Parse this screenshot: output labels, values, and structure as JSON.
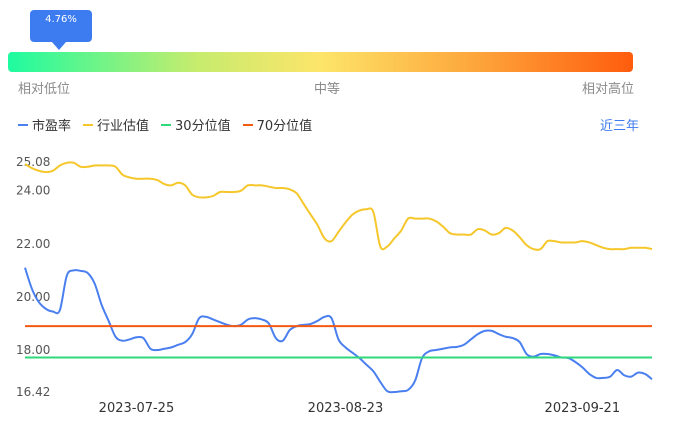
{
  "gauge": {
    "percentile_label": "4.76%",
    "percentile": 4.76,
    "low_label": "相对低位",
    "mid_label": "中等",
    "high_label": "相对高位"
  },
  "period_selector": "近三年",
  "colors": {
    "pe": "#4a7ff0",
    "industry": "#f6c72b",
    "p30": "#2ed97a",
    "p70": "#f45a12",
    "accent": "#3d7cf0"
  },
  "chart_data": {
    "type": "line",
    "ylim": [
      16.42,
      25.08
    ],
    "y_ticks": [
      "25.08",
      "24.00",
      "22.00",
      "20.00",
      "18.00",
      "16.42"
    ],
    "y_tick_values": [
      25.08,
      24.0,
      22.0,
      20.0,
      18.0,
      16.42
    ],
    "x_ticks": [
      "2023-07-25",
      "2023-08-23",
      "2023-09-21"
    ],
    "x_tick_index": [
      16,
      46,
      80
    ],
    "n_points": 91,
    "series": [
      {
        "name": "市盈率",
        "values": [
          21.1,
          20.3,
          19.8,
          19.55,
          19.45,
          19.5,
          20.8,
          21.0,
          20.98,
          20.9,
          20.5,
          19.7,
          19.1,
          18.5,
          18.35,
          18.4,
          18.48,
          18.45,
          18.05,
          18.0,
          18.05,
          18.1,
          18.2,
          18.3,
          18.6,
          19.2,
          19.25,
          19.15,
          19.05,
          18.95,
          18.9,
          18.95,
          19.15,
          19.2,
          19.15,
          19.0,
          18.45,
          18.35,
          18.75,
          18.9,
          18.95,
          18.98,
          19.1,
          19.25,
          19.2,
          18.4,
          18.1,
          17.9,
          17.7,
          17.45,
          17.2,
          16.8,
          16.45,
          16.42,
          16.45,
          16.5,
          16.85,
          17.7,
          17.95,
          18.0,
          18.05,
          18.1,
          18.12,
          18.2,
          18.4,
          18.6,
          18.72,
          18.72,
          18.6,
          18.5,
          18.45,
          18.3,
          17.85,
          17.75,
          17.85,
          17.85,
          17.8,
          17.72,
          17.7,
          17.55,
          17.35,
          17.1,
          16.95,
          16.95,
          17.0,
          17.25,
          17.05,
          17.0,
          17.15,
          17.1,
          16.9
        ]
      },
      {
        "name": "行业估值",
        "values": [
          25.0,
          24.85,
          24.75,
          24.7,
          24.75,
          24.95,
          25.05,
          25.05,
          24.9,
          24.9,
          24.95,
          24.95,
          24.95,
          24.9,
          24.6,
          24.5,
          24.45,
          24.45,
          24.45,
          24.4,
          24.25,
          24.2,
          24.3,
          24.2,
          23.85,
          23.75,
          23.75,
          23.8,
          23.95,
          23.95,
          23.95,
          24.0,
          24.2,
          24.2,
          24.2,
          24.15,
          24.1,
          24.1,
          24.05,
          23.9,
          23.5,
          23.1,
          22.7,
          22.2,
          22.1,
          22.45,
          22.8,
          23.1,
          23.25,
          23.3,
          23.2,
          21.9,
          21.9,
          22.2,
          22.5,
          22.95,
          22.95,
          22.95,
          22.95,
          22.85,
          22.65,
          22.4,
          22.35,
          22.35,
          22.35,
          22.55,
          22.5,
          22.35,
          22.4,
          22.6,
          22.5,
          22.25,
          21.95,
          21.8,
          21.8,
          22.1,
          22.1,
          22.05,
          22.05,
          22.05,
          22.1,
          22.05,
          21.95,
          21.85,
          21.8,
          21.8,
          21.8,
          21.85,
          21.85,
          21.85,
          21.8
        ]
      },
      {
        "name": "30分位值",
        "values": [
          17.72
        ]
      },
      {
        "name": "70分位值",
        "values": [
          18.9
        ]
      }
    ]
  }
}
